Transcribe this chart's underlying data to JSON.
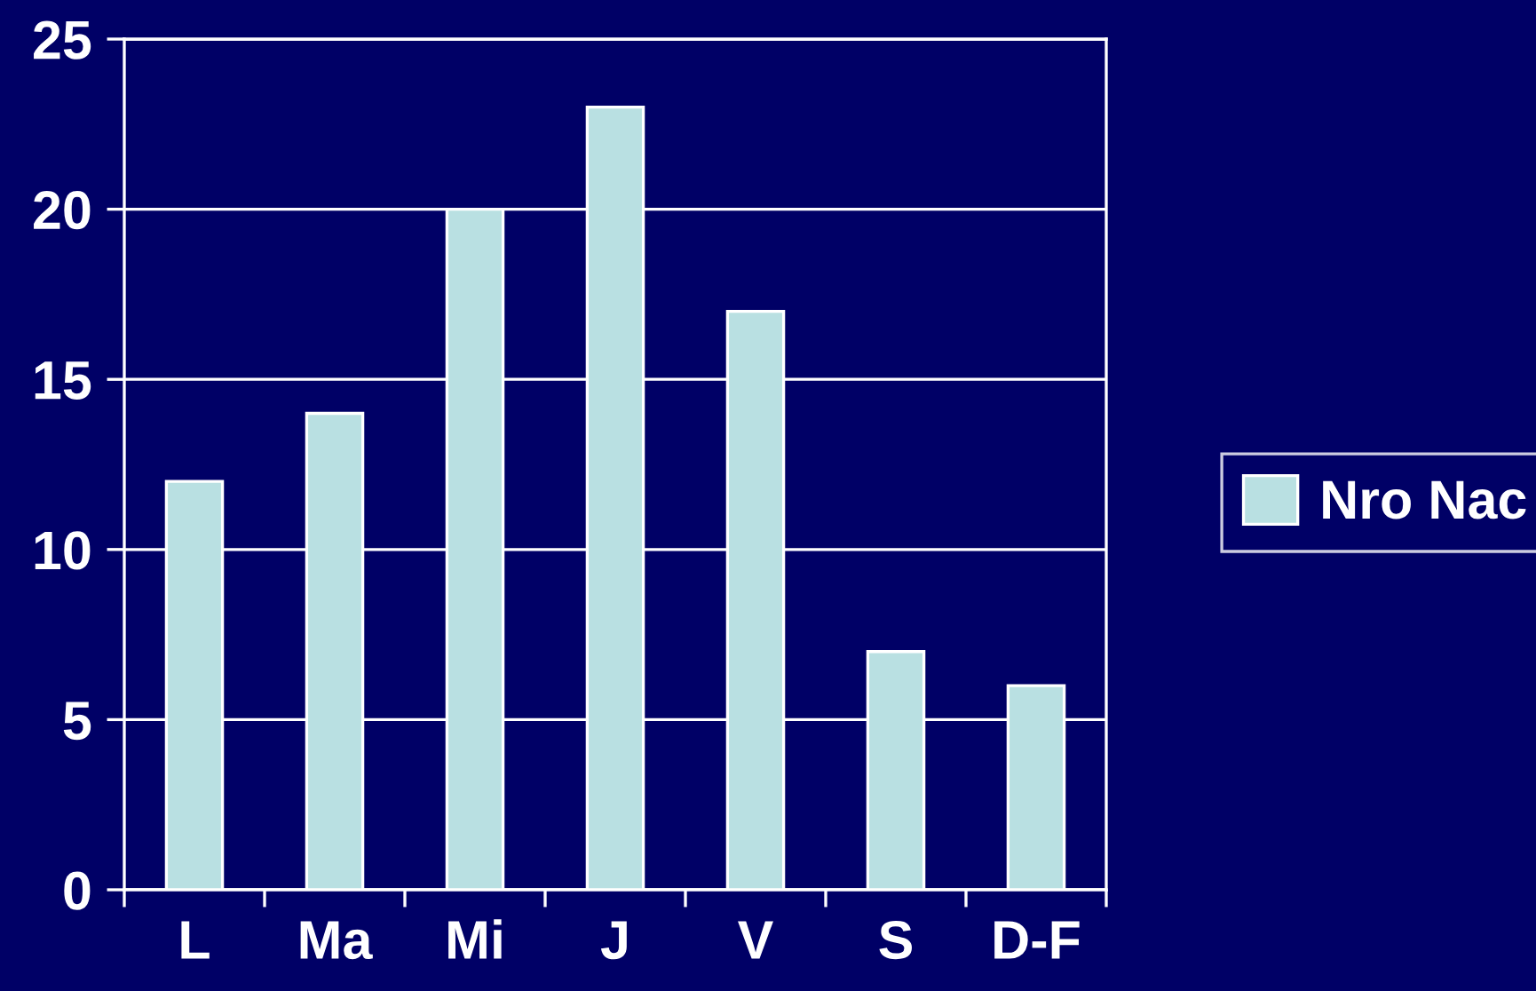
{
  "chart_data": {
    "type": "bar",
    "categories": [
      "L",
      "Ma",
      "Mi",
      "J",
      "V",
      "S",
      "D-F"
    ],
    "series": [
      {
        "name": "Nro Nac",
        "color": "#b9e0e2",
        "values": [
          12,
          14,
          20,
          23,
          17,
          7,
          6
        ]
      }
    ],
    "ylim": [
      0,
      25
    ],
    "yticks": [
      0,
      5,
      10,
      15,
      20,
      25
    ],
    "grid": "y",
    "legend": "right"
  }
}
